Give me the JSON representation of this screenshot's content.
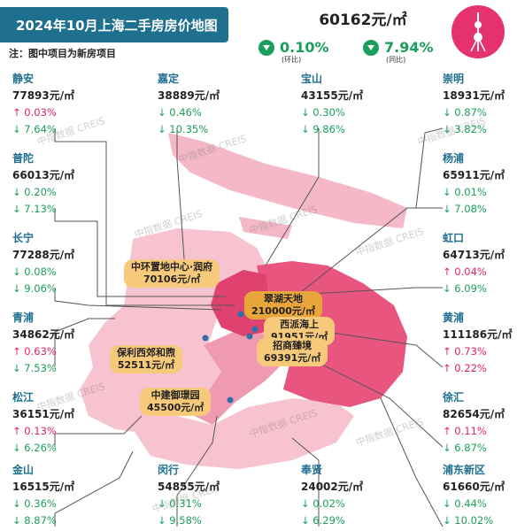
{
  "header": {
    "title": "2024年10月上海二手房房价地图",
    "note": "注：图中项目为新房项目"
  },
  "city": {
    "price": "60162元/㎡",
    "mom": {
      "value": "0.10%",
      "label": "(环比)"
    },
    "yoy": {
      "value": "7.94%",
      "label": "(同比)"
    }
  },
  "icons": {
    "tower": "oriental-pearl-tower-icon",
    "down": "down-arrow-icon"
  },
  "colors": {
    "accent": "#1f6f8f",
    "up": "#e0245e",
    "down": "#1a9e5c",
    "badge": "#e6336e",
    "project": "#f7c97a"
  },
  "districts": [
    {
      "name": "静安",
      "price": "77893元/㎡",
      "mom": "↑ 0.03%",
      "mom_dir": "up",
      "yoy": "↓ 7.64%",
      "yoy_dir": "down"
    },
    {
      "name": "嘉定",
      "price": "38889元/㎡",
      "mom": "↓ 0.46%",
      "mom_dir": "down",
      "yoy": "↓ 10.35%",
      "yoy_dir": "down"
    },
    {
      "name": "宝山",
      "price": "43155元/㎡",
      "mom": "↓ 0.30%",
      "mom_dir": "down",
      "yoy": "↓ 9.86%",
      "yoy_dir": "down"
    },
    {
      "name": "崇明",
      "price": "18931元/㎡",
      "mom": "↓ 0.87%",
      "mom_dir": "down",
      "yoy": "↓ 3.82%",
      "yoy_dir": "down"
    },
    {
      "name": "普陀",
      "price": "66013元/㎡",
      "mom": "↓ 0.20%",
      "mom_dir": "down",
      "yoy": "↓ 7.13%",
      "yoy_dir": "down"
    },
    {
      "name": "杨浦",
      "price": "65911元/㎡",
      "mom": "↓ 0.01%",
      "mom_dir": "down",
      "yoy": "↓ 7.08%",
      "yoy_dir": "down"
    },
    {
      "name": "长宁",
      "price": "77288元/㎡",
      "mom": "↓ 0.08%",
      "mom_dir": "down",
      "yoy": "↓ 9.06%",
      "yoy_dir": "down"
    },
    {
      "name": "虹口",
      "price": "64713元/㎡",
      "mom": "↑ 0.04%",
      "mom_dir": "up",
      "yoy": "↓ 6.09%",
      "yoy_dir": "down"
    },
    {
      "name": "青浦",
      "price": "34862元/㎡",
      "mom": "↑ 0.63%",
      "mom_dir": "up",
      "yoy": "↓ 7.53%",
      "yoy_dir": "down"
    },
    {
      "name": "黄浦",
      "price": "111186元/㎡",
      "mom": "↑ 0.73%",
      "mom_dir": "up",
      "yoy": "↑ 0.22%",
      "yoy_dir": "up"
    },
    {
      "name": "松江",
      "price": "36151元/㎡",
      "mom": "↑ 0.13%",
      "mom_dir": "up",
      "yoy": "↓ 6.26%",
      "yoy_dir": "down"
    },
    {
      "name": "徐汇",
      "price": "82654元/㎡",
      "mom": "↑ 0.11%",
      "mom_dir": "up",
      "yoy": "↓ 6.87%",
      "yoy_dir": "down"
    },
    {
      "name": "金山",
      "price": "16515元/㎡",
      "mom": "↓ 0.36%",
      "mom_dir": "down",
      "yoy": "↓ 8.87%",
      "yoy_dir": "down"
    },
    {
      "name": "闵行",
      "price": "54855元/㎡",
      "mom": "↓ 0.31%",
      "mom_dir": "down",
      "yoy": "↓ 9.58%",
      "yoy_dir": "down"
    },
    {
      "name": "奉贤",
      "price": "24002元/㎡",
      "mom": "↓ 0.02%",
      "mom_dir": "down",
      "yoy": "↓ 6.29%",
      "yoy_dir": "down"
    },
    {
      "name": "浦东新区",
      "price": "61660元/㎡",
      "mom": "↓ 0.44%",
      "mom_dir": "down",
      "yoy": "↓ 10.02%",
      "yoy_dir": "down"
    }
  ],
  "projects": [
    {
      "name": "中环置地中心·润府",
      "price": "70106元/㎡"
    },
    {
      "name": "翠湖天地",
      "price": "210000元/㎡"
    },
    {
      "name": "西派海上",
      "price": "91951元/㎡"
    },
    {
      "name": "招商臻境",
      "price": "69391元/㎡"
    },
    {
      "name": "保利西郊和煦",
      "price": "52511元/㎡"
    },
    {
      "name": "中建御璟园",
      "price": "45500元/㎡"
    }
  ],
  "watermark": "中指数据 CREIS"
}
